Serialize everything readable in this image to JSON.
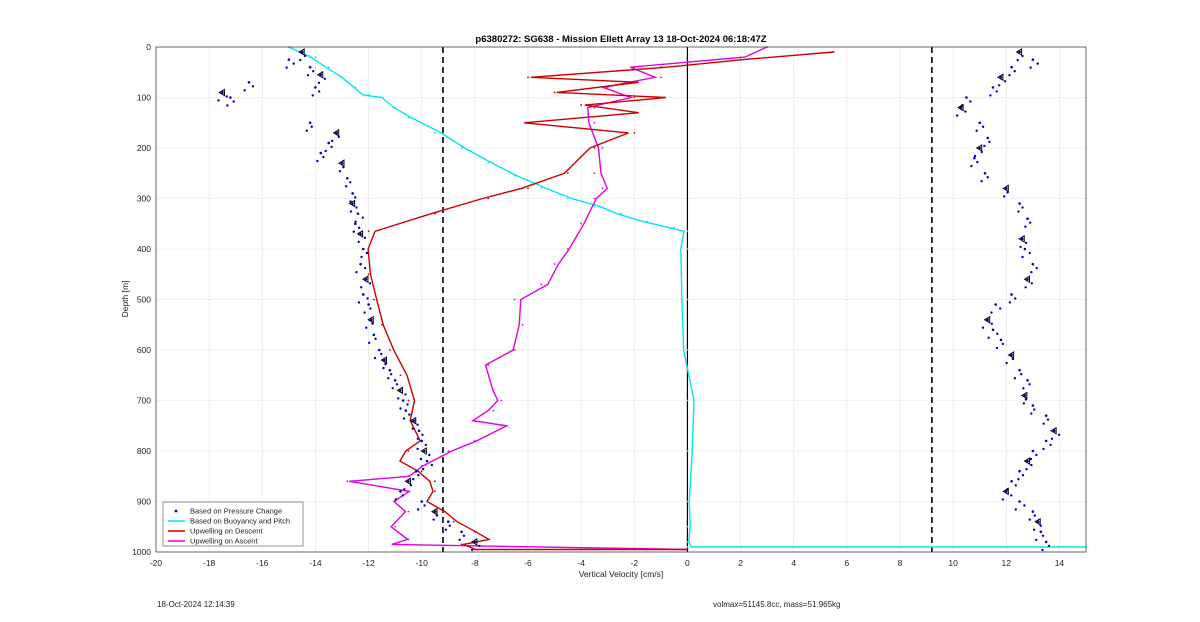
{
  "chart_data": {
    "type": "line",
    "title": "p6380272: SG638 - Mission Ellett Array 13 18-Oct-2024 06:18:47Z",
    "xlabel": "Vertical Velocity [cm/s]",
    "ylabel": "Depth [m]",
    "xlim": [
      -20,
      15
    ],
    "ylim": [
      0,
      1000
    ],
    "y_reversed": true,
    "xticks": [
      "-20",
      "-18",
      "-16",
      "-14",
      "-12",
      "-10",
      "-8",
      "-6",
      "-4",
      "-2",
      "0",
      "2",
      "4",
      "6",
      "8",
      "10",
      "12",
      "14"
    ],
    "yticks": [
      "0",
      "100",
      "200",
      "300",
      "400",
      "500",
      "600",
      "700",
      "800",
      "900",
      "1000"
    ],
    "grid": true,
    "legend_position": "bottom-left",
    "reference_lines": [
      {
        "x": -9.2,
        "style": "dashed",
        "color": "#000000"
      },
      {
        "x": 9.2,
        "style": "dashed",
        "color": "#000000"
      },
      {
        "x": 0,
        "style": "solid",
        "color": "#000000"
      }
    ],
    "series": [
      {
        "name": "Based on Pressure Change",
        "style": "dots",
        "color": "#0000cc",
        "descent": {
          "x": [
            -14.5,
            -15,
            -14.2,
            -13.8,
            -14,
            -16.5,
            -17.5,
            -17.2,
            -14.2,
            -13.2,
            -13.5,
            -13.8,
            -13,
            -12.8,
            -12.6,
            -12.6,
            -12.4,
            -12.5,
            -12.3,
            -12.2,
            -12.3,
            -12.1,
            -12.2,
            -12.0,
            -11.9,
            -11.8,
            -11.6,
            -11.4,
            -11.2,
            -11.0,
            -10.8,
            -10.7,
            -10.6,
            -10.3,
            -10.1,
            -10.0,
            -9.9,
            -9.8,
            -10.2,
            -10.5,
            -10.8,
            -10.0,
            -9.5,
            -9.0,
            -8.5,
            -8.0
          ],
          "y": [
            10,
            25,
            40,
            55,
            80,
            70,
            90,
            100,
            150,
            170,
            190,
            210,
            230,
            260,
            290,
            310,
            330,
            350,
            370,
            400,
            430,
            460,
            490,
            510,
            540,
            570,
            600,
            620,
            640,
            660,
            680,
            700,
            720,
            740,
            760,
            780,
            800,
            820,
            840,
            860,
            880,
            900,
            920,
            940,
            960,
            980
          ]
        },
        "ascent": {
          "x": [
            12.5,
            13,
            12.2,
            11.8,
            11.5,
            10.5,
            10.3,
            11,
            11.3,
            11.0,
            10.8,
            11.2,
            12.0,
            12.5,
            12.8,
            12.6,
            12.7,
            13.0,
            12.8,
            12.2,
            11.6,
            11.3,
            11.5,
            11.8,
            12.2,
            12.5,
            12.8,
            12.7,
            13.0,
            13.5,
            13.8,
            13.5,
            13.0,
            12.8,
            12.5,
            12.2,
            12.0,
            12.5,
            13.0,
            13.2,
            13.3,
            13.5
          ],
          "y": [
            10,
            25,
            40,
            60,
            80,
            100,
            120,
            150,
            180,
            200,
            220,
            250,
            280,
            310,
            340,
            380,
            400,
            430,
            460,
            490,
            510,
            540,
            560,
            580,
            610,
            640,
            660,
            690,
            710,
            730,
            760,
            780,
            800,
            820,
            840,
            860,
            880,
            900,
            920,
            940,
            960,
            980
          ]
        }
      },
      {
        "name": "Based on Buoyancy and Pitch",
        "style": "line",
        "color": "#00e5ee",
        "x": [
          -15,
          -14,
          -13.5,
          -13,
          -12.5,
          -12.0,
          -11.5,
          -11.0,
          -10.5,
          -9.5,
          -8.5,
          -7.5,
          -6.5,
          -5.5,
          -4.5,
          -3.5,
          -2.5,
          -1.5,
          -0.5,
          0,
          0,
          0,
          0,
          0,
          0,
          0,
          0,
          0,
          0,
          15
        ],
        "y": [
          0,
          20,
          40,
          60,
          80,
          95,
          100,
          120,
          140,
          170,
          200,
          230,
          255,
          280,
          300,
          315,
          330,
          345,
          358,
          365,
          400,
          500,
          600,
          700,
          800,
          900,
          950,
          980,
          990,
          990
        ]
      },
      {
        "name": "Upwelling on Descent",
        "style": "line",
        "color": "#cc0000",
        "x": [
          5.5,
          2,
          -1,
          -6,
          -2,
          -5,
          -1,
          -4,
          -2,
          -6,
          -2,
          -3.5,
          -4.5,
          -6,
          -7.5,
          -9.5,
          -12,
          -12.2,
          -12.0,
          -11.8,
          -11.5,
          -11.2,
          -10.8,
          -10.5,
          -10.3,
          -10.0,
          -10.5,
          -10.8,
          -10.0,
          -9.5,
          -9.5,
          -10.0,
          -9.2,
          -8.8,
          -8.0,
          -7.5,
          -8.5,
          -8.0,
          0
        ],
        "y": [
          10,
          25,
          40,
          60,
          70,
          90,
          100,
          115,
          130,
          150,
          170,
          200,
          250,
          280,
          300,
          330,
          365,
          400,
          450,
          500,
          550,
          600,
          650,
          700,
          740,
          780,
          800,
          820,
          840,
          860,
          880,
          900,
          920,
          940,
          960,
          975,
          985,
          995,
          995
        ]
      },
      {
        "name": "Upwelling on Ascent",
        "style": "line",
        "color": "#e000e0",
        "x": [
          3,
          2,
          -2,
          -1,
          -3,
          -2,
          -3.5,
          -3.5,
          -3.2,
          -3.5,
          -3.2,
          -3.5,
          -4.0,
          -4.5,
          -5.0,
          -5.5,
          -6.5,
          -6.2,
          -6.5,
          -7.5,
          -7.3,
          -7.0,
          -7.3,
          -8.0,
          -7.0,
          -8.0,
          -9.0,
          -10.0,
          -10.5,
          -12.8,
          -10.5,
          -11.0,
          -10.5,
          -11.0,
          -10.5,
          -11.0,
          0
        ],
        "y": [
          0,
          20,
          40,
          60,
          80,
          100,
          120,
          150,
          200,
          250,
          280,
          300,
          350,
          400,
          430,
          470,
          500,
          550,
          600,
          630,
          680,
          700,
          720,
          740,
          750,
          780,
          800,
          830,
          850,
          860,
          880,
          900,
          920,
          950,
          975,
          985,
          995
        ]
      }
    ],
    "legend": [
      "Based on Pressure Change",
      "Based on Buoyancy and Pitch",
      "Upwelling on Descent",
      "Upwelling on Ascent"
    ],
    "colors": {
      "descent_dots": "#0000cc",
      "buoyancy": "#00e5ee",
      "descent": "#cc0000",
      "ascent": "#e000e0",
      "markers": "#000000"
    }
  },
  "footer": {
    "left": "18-Oct-2024 12:14:39",
    "right": "volmax=51145.8cc, mass=51.965kg"
  }
}
